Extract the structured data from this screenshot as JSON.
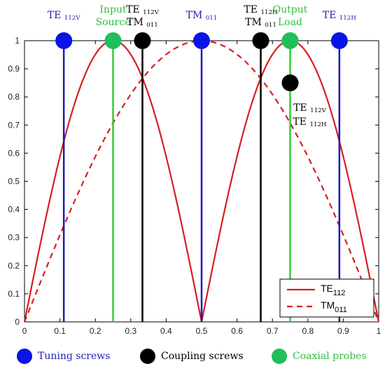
{
  "chart_data": {
    "type": "line",
    "xlim": [
      0,
      1
    ],
    "ylim": [
      0,
      1
    ],
    "x_ticks": [
      "0",
      "0.1",
      "0.2",
      "0.3",
      "0.4",
      "0.5",
      "0.6",
      "0.7",
      "0.8",
      "0.9",
      "1"
    ],
    "y_ticks": [
      "0",
      "0.1",
      "0.2",
      "0.3",
      "0.4",
      "0.5",
      "0.6",
      "0.7",
      "0.8",
      "0.9",
      "1"
    ],
    "grid": false,
    "series": [
      {
        "name": "TE",
        "subscript": "112",
        "style": "solid",
        "color": "#d42020",
        "function": "|sin(2πx)|"
      },
      {
        "name": "TM",
        "subscript": "011",
        "style": "dashed",
        "color": "#d42020",
        "function": "sin(πx)"
      }
    ],
    "series_points": {
      "x": [
        0,
        0.05,
        0.1,
        0.15,
        0.2,
        0.25,
        0.3,
        0.35,
        0.4,
        0.45,
        0.5,
        0.55,
        0.6,
        0.65,
        0.7,
        0.75,
        0.8,
        0.85,
        0.9,
        0.95,
        1
      ],
      "te112": [
        0,
        0.309,
        0.588,
        0.809,
        0.951,
        1,
        0.951,
        0.809,
        0.588,
        0.309,
        0,
        0.309,
        0.588,
        0.809,
        0.951,
        1,
        0.951,
        0.809,
        0.588,
        0.309,
        0
      ],
      "tm011": [
        0,
        0.156,
        0.309,
        0.454,
        0.588,
        0.707,
        0.809,
        0.891,
        0.951,
        0.988,
        1,
        0.988,
        0.951,
        0.891,
        0.809,
        0.707,
        0.588,
        0.454,
        0.309,
        0.156,
        0
      ]
    },
    "legend_placement": "bottom-right",
    "markers": [
      {
        "x": 0.111,
        "type": "tuning",
        "lines": [
          "TE 112V"
        ],
        "label_color": "#1f1fb0"
      },
      {
        "x": 0.25,
        "type": "probe",
        "lines": [
          "Input",
          "Source"
        ],
        "label_color": "#2fbf3f"
      },
      {
        "x": 0.333,
        "type": "coupling",
        "lines": [
          "TE 112V",
          "TM 011"
        ],
        "label_color": "#000000"
      },
      {
        "x": 0.5,
        "type": "tuning",
        "lines": [
          "TM 011"
        ],
        "label_color": "#1f1fb0"
      },
      {
        "x": 0.667,
        "type": "coupling",
        "lines": [
          "TE 112H",
          "TM 011"
        ],
        "label_color": "#000000"
      },
      {
        "x": 0.75,
        "type": "probe",
        "lines": [
          "Output",
          "Load"
        ],
        "label_color": "#2fbf3f"
      },
      {
        "x": 0.889,
        "type": "tuning",
        "lines": [
          "TE 112H"
        ],
        "label_color": "#1f1fb0"
      }
    ],
    "extra_coupling_marker": {
      "x": 0.75,
      "y": 0.85,
      "lines": [
        "TE 112V",
        "TE 112H"
      ]
    },
    "marker_colors": {
      "tuning": "#0a14e6",
      "coupling": "#000000",
      "probe": "#1fbf5c"
    },
    "line_colors": {
      "tuning": "#1a1ab8",
      "coupling": "#000000",
      "probe": "#33cc33"
    }
  },
  "legend": {
    "tuning": "Tuning screws",
    "coupling": "Coupling screws",
    "probe": "Coaxial probes"
  },
  "legend_colors": {
    "tuning_text": "#1f1fb0",
    "coupling_text": "#000000",
    "probe_text": "#2fbf3f"
  }
}
